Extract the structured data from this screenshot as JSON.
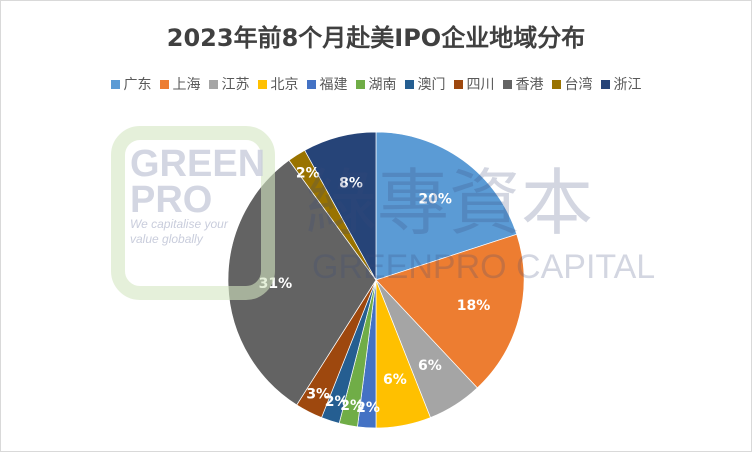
{
  "chart_data": {
    "type": "pie",
    "title": "2023年前8个月赴美IPO企业地域分布",
    "legend_position": "top",
    "categories": [
      "广东",
      "上海",
      "江苏",
      "北京",
      "福建",
      "湖南",
      "澳门",
      "四川",
      "香港",
      "台湾",
      "浙江"
    ],
    "values": [
      20,
      18,
      6,
      6,
      2,
      2,
      2,
      3,
      31,
      2,
      8
    ],
    "labels": [
      "20%",
      "18%",
      "6%",
      "6%",
      "2%",
      "2%",
      "2%",
      "3%",
      "31%",
      "2%",
      "8%"
    ],
    "colors": [
      "#5b9bd5",
      "#ed7d31",
      "#a5a5a5",
      "#ffc000",
      "#4472c4",
      "#70ad47",
      "#255e91",
      "#9e480e",
      "#636363",
      "#997300",
      "#264478"
    ]
  },
  "watermark": {
    "logo_text": [
      "GREEN",
      "PRO",
      "We capitalise your",
      "value globally"
    ],
    "chinese": "綠專資本",
    "english": "GREENPRO CAPITAL"
  }
}
